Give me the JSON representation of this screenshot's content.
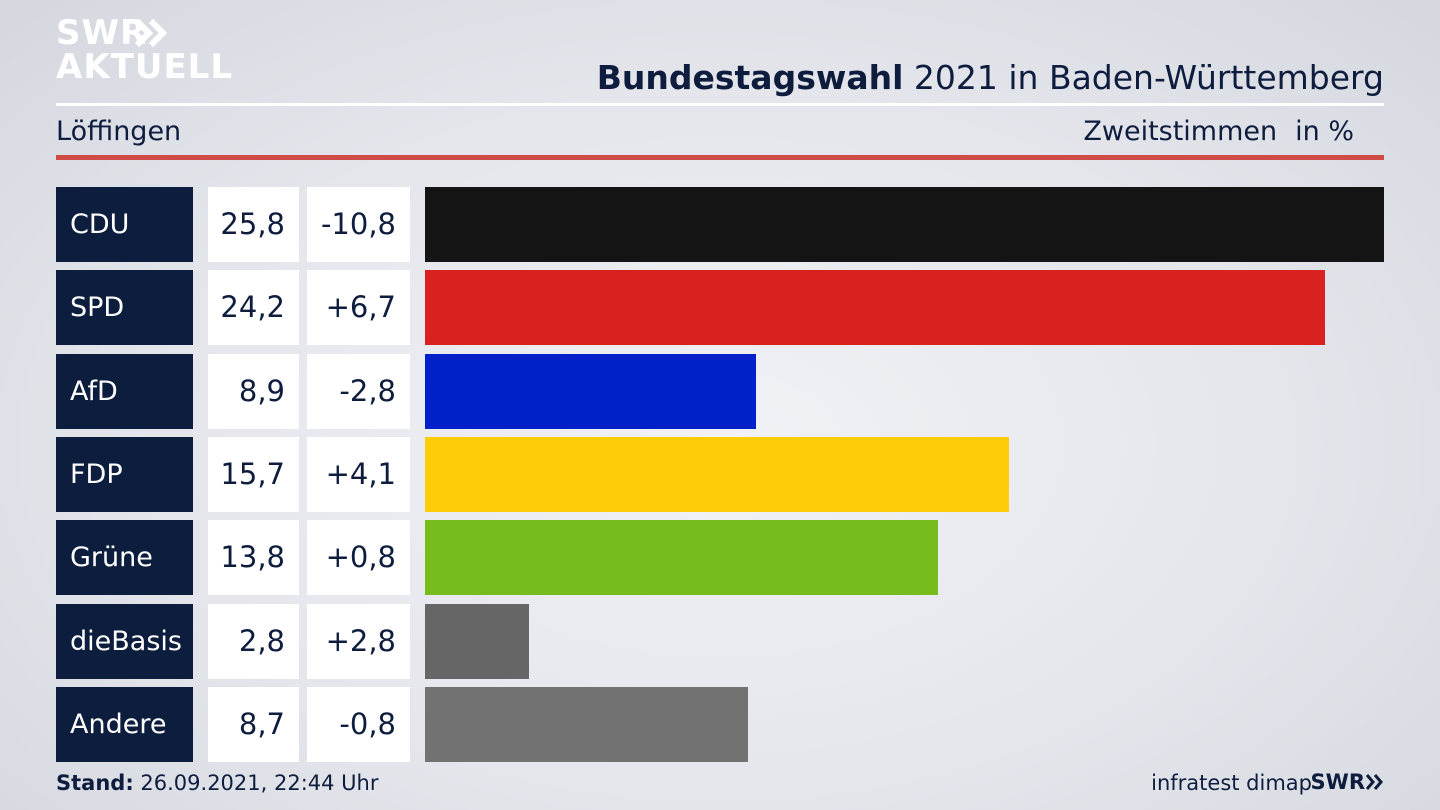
{
  "brand": {
    "line1": "SWR",
    "line2": "AKTUELL",
    "footer_logo": "SWR",
    "arrow_icon": "double-chevron-right-icon"
  },
  "header": {
    "title_bold": "Bundestagswahl",
    "title_rest": " 2021 in Baden-Württemberg",
    "location": "Löffingen",
    "metric": "Zweitstimmen",
    "unit": "in %"
  },
  "colors": {
    "accent_rule": "#cf4b45",
    "label_bg": "#0d1d3e"
  },
  "chart_data": {
    "type": "bar",
    "orientation": "horizontal",
    "categories": [
      "CDU",
      "SPD",
      "AfD",
      "FDP",
      "Grüne",
      "dieBasis",
      "Andere"
    ],
    "values": [
      25.8,
      24.2,
      8.9,
      15.7,
      13.8,
      2.8,
      8.7
    ],
    "values_label": [
      "25,8",
      "24,2",
      "8,9",
      "15,7",
      "13,8",
      "2,8",
      "8,7"
    ],
    "differences": [
      "-10,8",
      "+6,7",
      "-2,8",
      "+4,1",
      "+0,8",
      "+2,8",
      "-0,8"
    ],
    "colors": [
      "#141414",
      "#d9211f",
      "#0021c9",
      "#ffcc0a",
      "#77bc1d",
      "#666666",
      "#727272"
    ],
    "xlim": [
      0,
      25.8
    ]
  },
  "footer": {
    "stand_label": "Stand:",
    "stand_value": " 26.09.2021, 22:44 Uhr",
    "source": "infratest dimap"
  }
}
